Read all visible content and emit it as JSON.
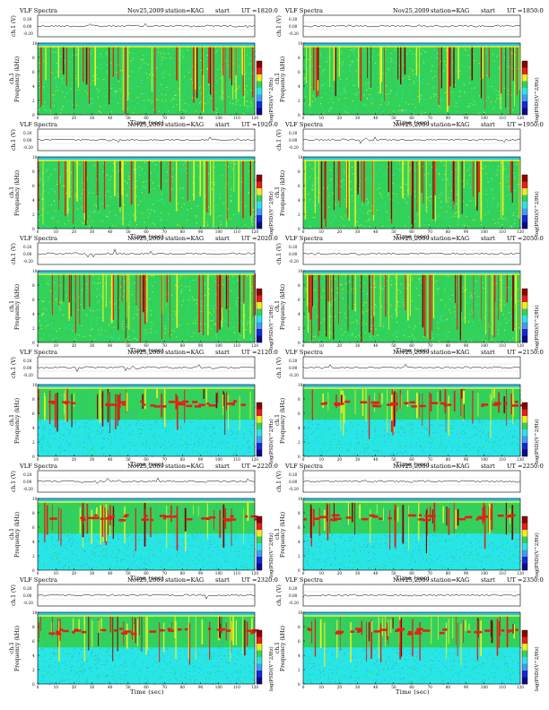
{
  "chart_data": {
    "type": "heatmap",
    "title": "VLF Spectra",
    "date": "Nov25,2009",
    "station_label": "station=KAG",
    "start_label": "start",
    "ut_prefix": "UT =",
    "ch_label": "ch.1 (V)",
    "ch_ticks": [
      "0.20",
      "0.00",
      "-0.20"
    ],
    "ylabel": "Frequency (kHz)",
    "ylabel_ch": "ch.1",
    "yticks": [
      "0",
      "2",
      "4",
      "6",
      "8",
      "10"
    ],
    "xlabel": "Time (sec)",
    "xticks": [
      "0",
      "10",
      "20",
      "30",
      "40",
      "50",
      "60",
      "70",
      "80",
      "90",
      "100",
      "110",
      "120"
    ],
    "xlim": [
      0,
      120
    ],
    "ylim": [
      0,
      10
    ],
    "colorbar_label": "log(PSD)(V^2/Hz)",
    "colorbar_ticks": [
      "",
      "",
      "",
      ""
    ],
    "colors": {
      "dark_blue": "#0a0a8c",
      "blue": "#1428dc",
      "light_blue": "#3ca0f0",
      "cyan": "#28e6e6",
      "green": "#32d25a",
      "yellow": "#f0f01e",
      "red": "#e61e14",
      "dark_red": "#8c0000",
      "top_band": "#22c8f0"
    },
    "panels": [
      {
        "ut": "1820:0",
        "band_khz": 9.6
      },
      {
        "ut": "1850:0",
        "band_khz": 9.6
      },
      {
        "ut": "1920:0",
        "band_khz": 9.6
      },
      {
        "ut": "1950:0",
        "band_khz": 9.6
      },
      {
        "ut": "2020:0",
        "band_khz": 9.6
      },
      {
        "ut": "2050:0",
        "band_khz": 9.6
      },
      {
        "ut": "2120:0",
        "band_khz": 9.6
      },
      {
        "ut": "2150:0",
        "band_khz": 9.6
      },
      {
        "ut": "2220:0",
        "band_khz": 9.6
      },
      {
        "ut": "2250:0",
        "band_khz": 9.6
      },
      {
        "ut": "2320:0",
        "band_khz": 9.6
      },
      {
        "ut": "2350:0",
        "band_khz": 9.6
      }
    ]
  }
}
